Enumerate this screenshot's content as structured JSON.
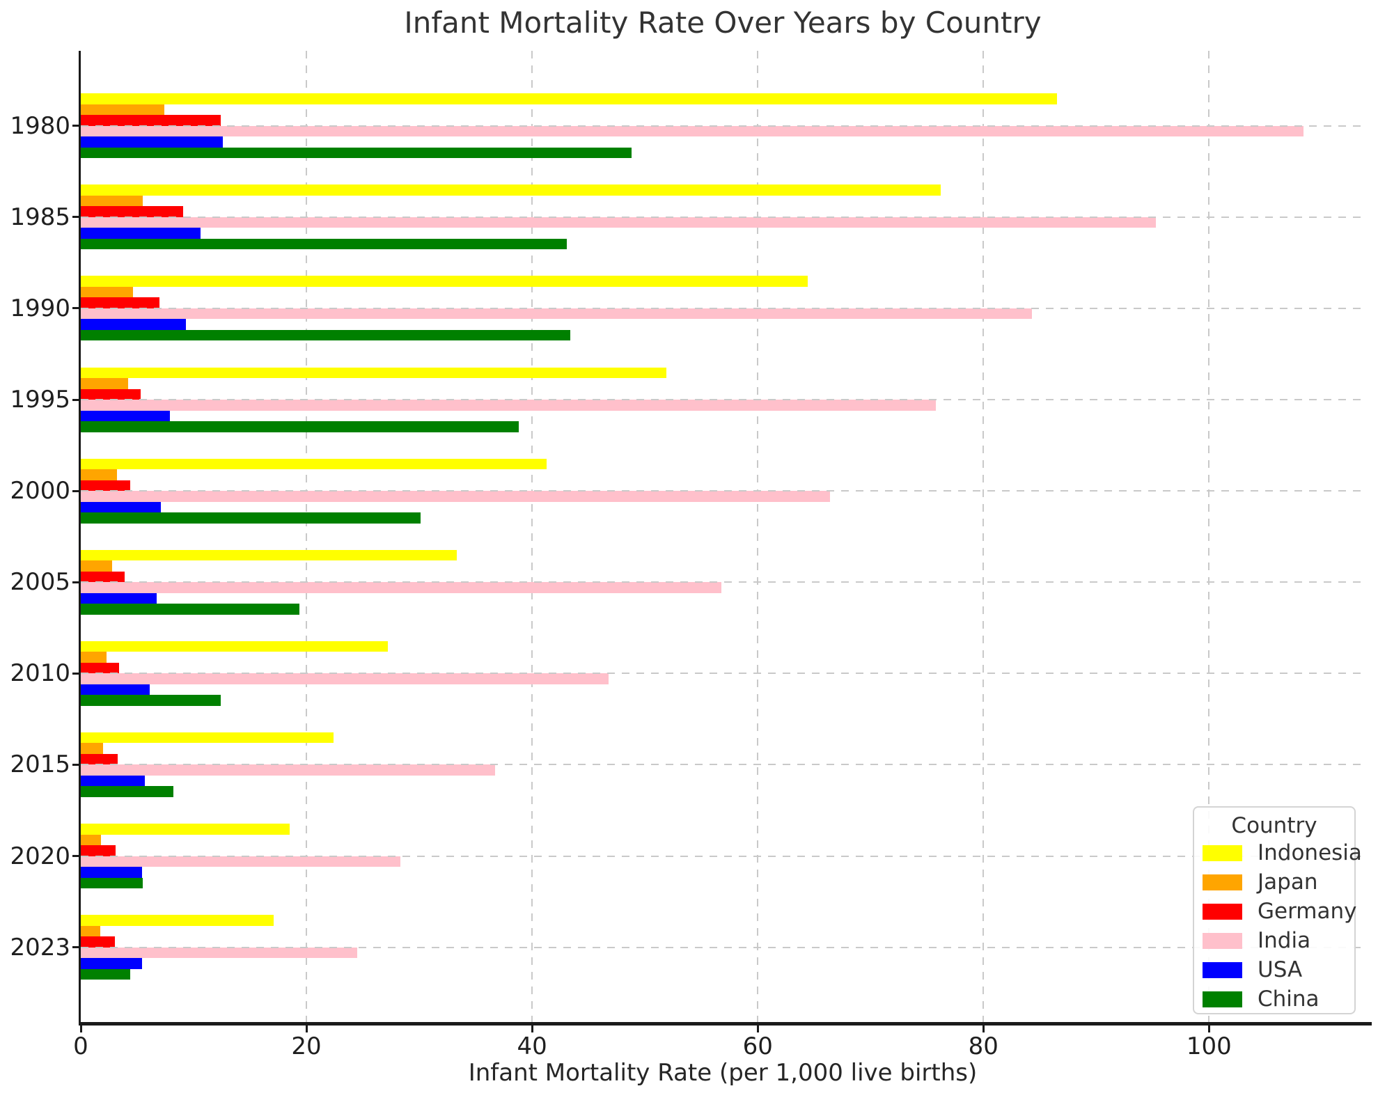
{
  "title": "Infant Mortality Rate Over Years by Country",
  "xlabel": "Infant Mortality Rate (per 1,000 live births)",
  "legend_title": "Country",
  "chart_data": {
    "type": "bar",
    "orientation": "horizontal",
    "title": "Infant Mortality Rate Over Years by Country",
    "xlabel": "Infant Mortality Rate (per 1,000 live births)",
    "ylabel": "",
    "categories": [
      "1980",
      "1985",
      "1990",
      "1995",
      "2000",
      "2005",
      "2010",
      "2015",
      "2020",
      "2023"
    ],
    "series": [
      {
        "name": "Indonesia",
        "color": "#FFFF00",
        "values": [
          86.5,
          76.2,
          64.4,
          51.9,
          41.3,
          33.3,
          27.2,
          22.4,
          18.5,
          17.1
        ]
      },
      {
        "name": "Japan",
        "color": "#FFA500",
        "values": [
          7.4,
          5.5,
          4.6,
          4.2,
          3.2,
          2.8,
          2.3,
          2.0,
          1.8,
          1.7
        ]
      },
      {
        "name": "Germany",
        "color": "#FF0000",
        "values": [
          12.4,
          9.1,
          7.0,
          5.3,
          4.4,
          3.9,
          3.4,
          3.3,
          3.1,
          3.0
        ]
      },
      {
        "name": "India",
        "color": "#FFC0CB",
        "values": [
          108.4,
          95.3,
          84.3,
          75.8,
          66.4,
          56.8,
          46.8,
          36.7,
          28.3,
          24.5
        ]
      },
      {
        "name": "USA",
        "color": "#0000FF",
        "values": [
          12.6,
          10.6,
          9.3,
          7.9,
          7.1,
          6.7,
          6.1,
          5.7,
          5.4,
          5.4
        ]
      },
      {
        "name": "China",
        "color": "#008000",
        "values": [
          48.8,
          43.1,
          43.4,
          38.8,
          30.1,
          19.4,
          12.4,
          8.2,
          5.5,
          4.4
        ]
      }
    ],
    "xticks": [
      0,
      20,
      40,
      60,
      80,
      100
    ],
    "xlim": [
      0,
      113.8
    ],
    "grid": true,
    "legend_title": "Country",
    "legend_position": "lower right"
  },
  "colors": {
    "grid": "#c9c9c9",
    "spine": "#1a1a1a",
    "text": "#333333"
  }
}
